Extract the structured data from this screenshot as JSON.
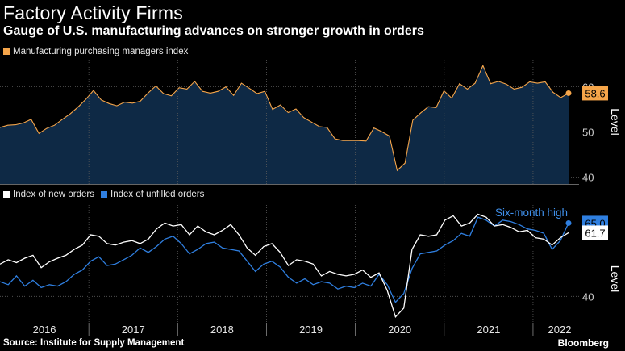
{
  "header": {
    "title": "Factory Activity Firms",
    "subtitle": "Gauge of U.S. manufacturing advances on stronger growth in orders"
  },
  "footer": {
    "source": "Source: Institute for Supply Management",
    "brand": "Bloomberg"
  },
  "chart_data": [
    {
      "type": "area",
      "ylabel": "Level",
      "ylim": [
        38.5,
        66
      ],
      "yticks": [
        "40",
        "50",
        "60"
      ],
      "grid": true,
      "legend_placement": "top-left",
      "series": [
        {
          "name": "Manufacturing purchasing managers index",
          "color": "#f5a54a",
          "fill": "#0e2945",
          "last_label": "58.6",
          "values": [
            51.0,
            51.5,
            51.6,
            52.0,
            52.8,
            49.7,
            50.8,
            51.5,
            52.8,
            54.0,
            55.5,
            57.2,
            59.2,
            57.1,
            56.3,
            55.8,
            56.6,
            56.4,
            56.8,
            58.6,
            60.2,
            58.5,
            58.0,
            59.8,
            59.5,
            61.2,
            59.0,
            58.6,
            59.0,
            60.0,
            58.1,
            60.8,
            59.7,
            58.5,
            59.0,
            55.0,
            56.0,
            54.3,
            55.1,
            53.2,
            52.2,
            51.2,
            51.0,
            48.5,
            48.1,
            48.1,
            48.1,
            48.0,
            50.9,
            50.1,
            49.1,
            41.5,
            43.1,
            52.6,
            54.2,
            55.6,
            55.4,
            59.1,
            57.5,
            60.7,
            59.5,
            60.8,
            64.7,
            60.7,
            61.2,
            60.6,
            59.5,
            59.9,
            61.1,
            60.8,
            61.1,
            58.8,
            57.6,
            58.6
          ]
        }
      ]
    },
    {
      "type": "line",
      "ylabel": "Level",
      "ylim": [
        31,
        72
      ],
      "yticks": [
        "40"
      ],
      "grid": true,
      "legend_placement": "top-left",
      "annotation": "Six-month high",
      "xticks": [
        "2016",
        "2017",
        "2018",
        "2019",
        "2020",
        "2021",
        "2022"
      ],
      "series": [
        {
          "name": "Index of new orders",
          "color": "#ffffff",
          "last_label": "61.7",
          "values": [
            51.0,
            52.5,
            51.5,
            53.0,
            54.0,
            49.8,
            51.8,
            53.0,
            54.0,
            56.0,
            57.5,
            61.0,
            60.5,
            58.0,
            57.5,
            58.5,
            59.0,
            58.0,
            59.5,
            63.0,
            65.0,
            64.0,
            64.5,
            61.0,
            64.0,
            62.0,
            61.0,
            62.5,
            64.5,
            61.0,
            56.5,
            54.0,
            57.0,
            58.0,
            55.0,
            50.5,
            52.5,
            52.0,
            51.0,
            47.0,
            48.5,
            47.5,
            47.0,
            47.5,
            49.0,
            46.5,
            48.0,
            42.0,
            33.0,
            36.0,
            56.0,
            61.0,
            60.5,
            61.0,
            66.0,
            67.5,
            64.0,
            65.0,
            68.0,
            67.0,
            64.0,
            64.5,
            63.5,
            62.0,
            62.5,
            60.0,
            59.5,
            57.5,
            60.0,
            61.7
          ]
        },
        {
          "name": "Index of unfilled orders",
          "color": "#2f7fe0",
          "last_label": "65.0",
          "values": [
            45.0,
            44.0,
            47.0,
            43.5,
            45.5,
            43.0,
            44.0,
            43.5,
            45.0,
            47.5,
            49.0,
            52.0,
            53.5,
            50.5,
            51.0,
            52.5,
            54.0,
            56.5,
            55.0,
            57.0,
            59.5,
            60.5,
            58.0,
            54.5,
            56.0,
            58.0,
            58.5,
            56.5,
            56.0,
            55.5,
            52.0,
            48.5,
            51.0,
            52.0,
            50.0,
            46.5,
            44.5,
            46.0,
            44.0,
            45.0,
            44.5,
            42.5,
            43.5,
            43.0,
            44.5,
            43.5,
            47.5,
            44.0,
            38.0,
            41.0,
            49.5,
            54.5,
            55.0,
            55.5,
            57.5,
            59.0,
            61.5,
            60.5,
            67.0,
            66.0,
            64.0,
            66.0,
            65.5,
            64.5,
            63.0,
            62.5,
            61.5,
            56.0,
            59.0,
            65.0
          ]
        }
      ]
    }
  ]
}
